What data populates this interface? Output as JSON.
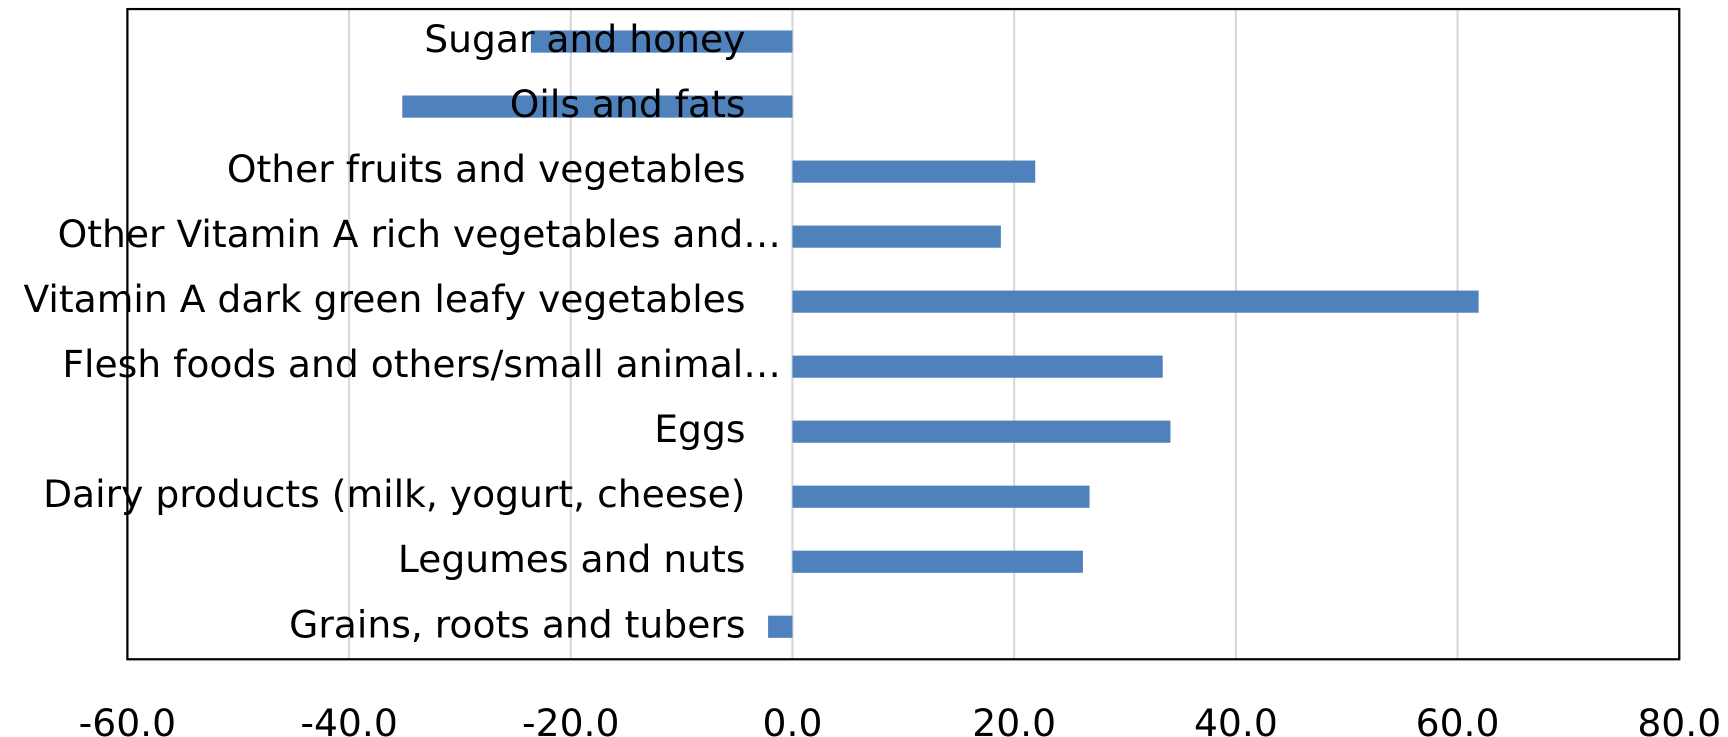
{
  "chart_data": {
    "type": "bar",
    "orientation": "horizontal",
    "categories": [
      "Grains, roots and tubers",
      "Legumes and nuts",
      "Dairy products (milk, yogurt, cheese)",
      "Eggs",
      "Flesh foods and others/small animal…",
      "Vitamin A dark green leafy vegetables",
      "Other Vitamin A rich vegetables and…",
      "Other fruits and vegetables",
      "Oils and fats",
      "Sugar and honey"
    ],
    "values": [
      -2.2,
      26.2,
      26.8,
      34.1,
      33.4,
      61.9,
      18.8,
      21.9,
      -35.2,
      -23.6
    ],
    "color": "#4f81bd",
    "xlim": [
      -60,
      80
    ],
    "xticks": [
      {
        "value": -60,
        "label": "-60.0"
      },
      {
        "value": -40,
        "label": "-40.0"
      },
      {
        "value": -20,
        "label": "-20.0"
      },
      {
        "value": 0,
        "label": "0.0"
      },
      {
        "value": 20,
        "label": "20.0"
      },
      {
        "value": 40,
        "label": "40.0"
      },
      {
        "value": 60,
        "label": "60.0"
      },
      {
        "value": 80,
        "label": "80.0"
      }
    ],
    "grid": true
  }
}
